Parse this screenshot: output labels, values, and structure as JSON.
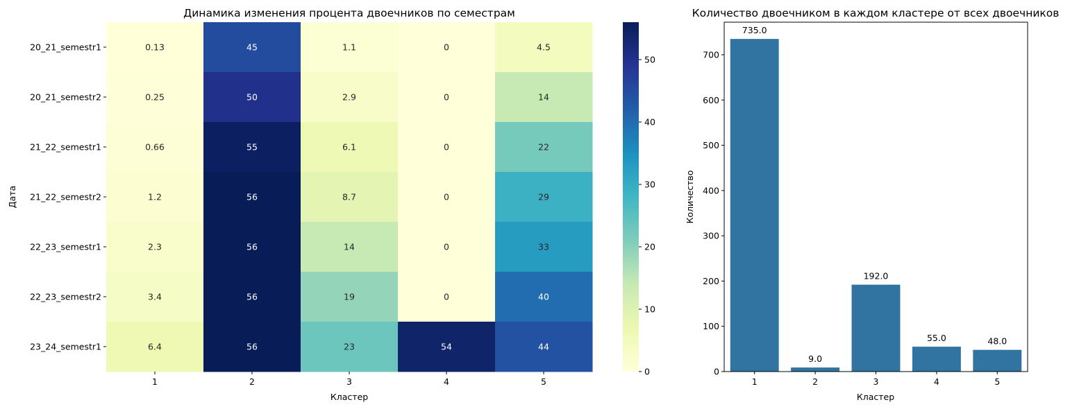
{
  "chart_data": [
    {
      "type": "heatmap",
      "title": "Динамика изменения процента двоечников по семестрам",
      "xlabel": "Кластер",
      "ylabel": "Дата",
      "x_categories": [
        "1",
        "2",
        "3",
        "4",
        "5"
      ],
      "y_categories": [
        "20_21_semestr1",
        "20_21_semestr2",
        "21_22_semestr1",
        "21_22_semestr2",
        "22_23_semestr1",
        "22_23_semestr2",
        "23_24_semestr1"
      ],
      "values": [
        [
          0.13,
          45,
          1.1,
          0,
          4.5
        ],
        [
          0.25,
          50,
          2.9,
          0,
          14
        ],
        [
          0.66,
          55,
          6.1,
          0,
          22
        ],
        [
          1.2,
          56,
          8.7,
          0,
          29
        ],
        [
          2.3,
          56,
          14,
          0,
          33
        ],
        [
          3.4,
          56,
          19,
          0,
          40
        ],
        [
          6.4,
          56,
          23,
          54,
          44
        ]
      ],
      "colorscale": "YlGnBu",
      "colorbar_range": [
        0,
        56
      ],
      "colorbar_ticks": [
        0,
        10,
        20,
        30,
        40,
        50
      ]
    },
    {
      "type": "bar",
      "title": "Количество двоечником в каждом кластере от всех двоечников",
      "xlabel": "Кластер",
      "ylabel": "Количество",
      "categories": [
        "1",
        "2",
        "3",
        "4",
        "5"
      ],
      "values": [
        735.0,
        9.0,
        192.0,
        55.0,
        48.0
      ],
      "value_labels": [
        "735.0",
        "9.0",
        "192.0",
        "55.0",
        "48.0"
      ],
      "ylim": [
        0,
        772
      ],
      "yticks": [
        0,
        100,
        200,
        300,
        400,
        500,
        600,
        700
      ],
      "bar_color": "#3274a1"
    }
  ]
}
